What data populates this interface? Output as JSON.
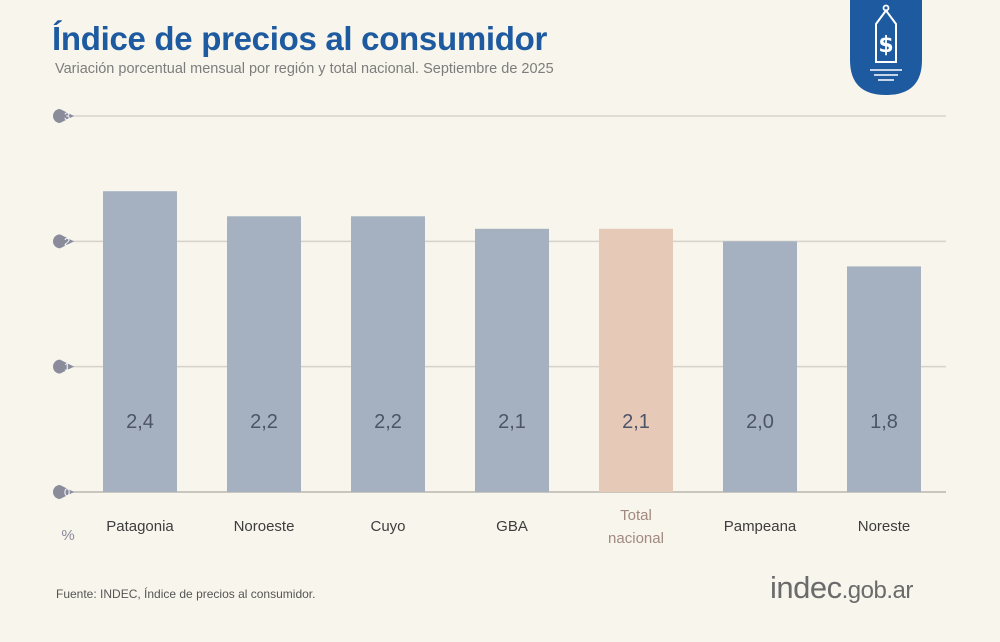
{
  "header": {
    "title": "Índice de precios al consumidor",
    "subtitle": "Variación porcentual mensual por región y total nacional. Septiembre de 2025",
    "badge_icon": "price-tag-dollar-icon"
  },
  "footer": {
    "source": "Fuente: INDEC, Índice de precios al consumidor.",
    "logo_main": "indec",
    "logo_domain": ".gob.ar"
  },
  "colors": {
    "bar": "#a5b1c1",
    "highlight": "#e7c9b8",
    "title": "#1d5aa0",
    "background": "#f8f5ec"
  },
  "chart_data": {
    "type": "bar",
    "categories": [
      "Patagonia",
      "Noroeste",
      "Cuyo",
      "GBA",
      "Total nacional",
      "Pampeana",
      "Noreste"
    ],
    "category_lines": [
      [
        "Patagonia"
      ],
      [
        "Noroeste"
      ],
      [
        "Cuyo"
      ],
      [
        "GBA"
      ],
      [
        "Total",
        "nacional"
      ],
      [
        "Pampeana"
      ],
      [
        "Noreste"
      ]
    ],
    "values": [
      2.4,
      2.2,
      2.2,
      2.1,
      2.1,
      2.0,
      1.8
    ],
    "data_labels": [
      "2,4",
      "2,2",
      "2,2",
      "2,1",
      "2,1",
      "2,0",
      "1,8"
    ],
    "highlight_index": 4,
    "ylabel": "%",
    "ylim": [
      0,
      3
    ],
    "yticks": [
      0,
      1,
      2,
      3
    ],
    "ytick_labels": [
      "0",
      "1",
      "2",
      "3"
    ],
    "grid": true
  }
}
